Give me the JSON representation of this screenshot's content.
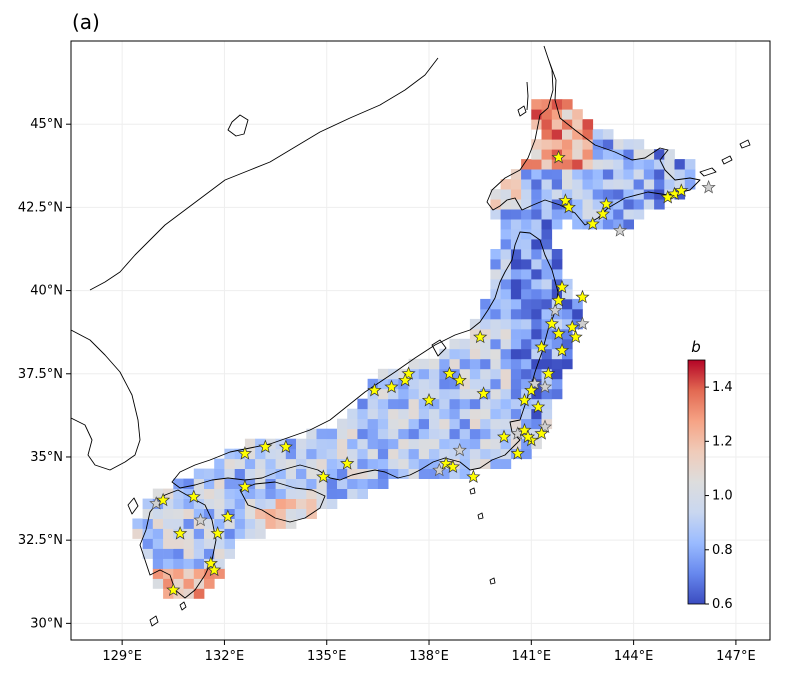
{
  "panel_label": "(a)",
  "colors": {
    "cmap": [
      "#3b4cc0",
      "#6788ee",
      "#9abbff",
      "#c9d7f0",
      "#dddddd",
      "#f0cbb9",
      "#f6a385",
      "#e26952",
      "#b40426"
    ],
    "star_detected": "#ffff00",
    "star_other": "#d0d0d0",
    "coast": "#000000"
  },
  "chart_data": {
    "type": "heatmap",
    "title": "",
    "xlabel": "",
    "ylabel": "",
    "xlim": [
      127.5,
      148.0
    ],
    "ylim": [
      29.5,
      47.5
    ],
    "x_ticks": [
      "129°E",
      "132°E",
      "135°E",
      "138°E",
      "141°E",
      "144°E",
      "147°E"
    ],
    "x_tick_values": [
      129,
      132,
      135,
      138,
      141,
      144,
      147
    ],
    "y_ticks": [
      "30°N",
      "32.5°N",
      "35°N",
      "37.5°N",
      "40°N",
      "42.5°N",
      "45°N"
    ],
    "y_tick_values": [
      30,
      32.5,
      35,
      37.5,
      40,
      42.5,
      45
    ],
    "colorbar": {
      "label": "b",
      "range": [
        0.6,
        1.5
      ],
      "ticks": [
        "0.6",
        "0.8",
        "1.0",
        "1.2",
        "1.4"
      ],
      "tick_values": [
        0.6,
        0.8,
        1.0,
        1.2,
        1.4
      ]
    },
    "stations_yellow": [
      [
        141.8,
        44.0
      ],
      [
        142.0,
        42.7
      ],
      [
        142.1,
        42.5
      ],
      [
        143.2,
        42.6
      ],
      [
        143.1,
        42.3
      ],
      [
        142.8,
        42.0
      ],
      [
        145.2,
        42.9
      ],
      [
        145.4,
        43.0
      ],
      [
        145.0,
        42.8
      ],
      [
        141.9,
        40.1
      ],
      [
        142.5,
        39.8
      ],
      [
        141.8,
        39.7
      ],
      [
        141.6,
        39.0
      ],
      [
        142.2,
        38.9
      ],
      [
        141.8,
        38.7
      ],
      [
        141.3,
        38.3
      ],
      [
        141.9,
        38.2
      ],
      [
        141.5,
        37.5
      ],
      [
        141.0,
        37.0
      ],
      [
        140.8,
        36.7
      ],
      [
        141.2,
        36.5
      ],
      [
        140.8,
        35.8
      ],
      [
        141.0,
        35.5
      ],
      [
        140.6,
        35.1
      ],
      [
        140.2,
        35.6
      ],
      [
        139.5,
        38.6
      ],
      [
        137.4,
        37.5
      ],
      [
        137.3,
        37.3
      ],
      [
        136.9,
        37.1
      ],
      [
        136.4,
        37.0
      ],
      [
        138.6,
        37.5
      ],
      [
        138.9,
        37.3
      ],
      [
        139.6,
        36.9
      ],
      [
        138.0,
        36.7
      ],
      [
        138.5,
        34.8
      ],
      [
        138.7,
        34.7
      ],
      [
        139.3,
        34.4
      ],
      [
        135.6,
        34.8
      ],
      [
        134.9,
        34.4
      ],
      [
        133.8,
        35.3
      ],
      [
        133.2,
        35.3
      ],
      [
        132.6,
        35.1
      ],
      [
        132.6,
        34.1
      ],
      [
        131.1,
        33.8
      ],
      [
        130.2,
        33.7
      ],
      [
        130.7,
        32.7
      ],
      [
        132.1,
        33.2
      ],
      [
        131.8,
        32.7
      ],
      [
        131.6,
        31.8
      ],
      [
        131.7,
        31.6
      ],
      [
        130.5,
        31.0
      ],
      [
        140.9,
        35.6
      ],
      [
        141.3,
        35.7
      ],
      [
        142.3,
        38.6
      ]
    ],
    "stations_grey": [
      [
        146.2,
        43.1
      ],
      [
        143.6,
        41.8
      ],
      [
        142.5,
        39.0
      ],
      [
        141.7,
        39.4
      ],
      [
        141.1,
        37.2
      ],
      [
        141.4,
        37.1
      ],
      [
        138.9,
        35.2
      ],
      [
        138.3,
        34.6
      ],
      [
        131.3,
        33.1
      ],
      [
        130.0,
        33.6
      ],
      [
        140.6,
        35.7
      ],
      [
        141.4,
        35.9
      ]
    ]
  }
}
